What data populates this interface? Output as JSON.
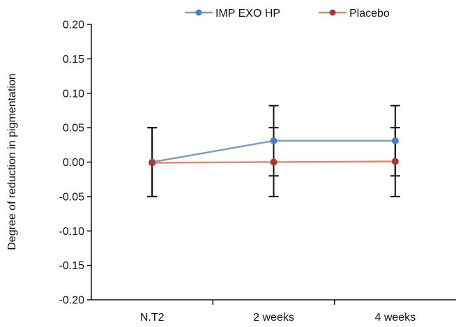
{
  "chart_data": {
    "type": "line",
    "title": "",
    "xlabel": "",
    "ylabel": "Degree of reduction in pigmentation",
    "categories": [
      "N.T2",
      "2 weeks",
      "4 weeks"
    ],
    "ylim": [
      -0.2,
      0.2
    ],
    "yticks": [
      "0.20",
      "0.15",
      "0.10",
      "0.05",
      "0.00",
      "-0.05",
      "-0.10",
      "-0.15",
      "-0.20"
    ],
    "ytick_values": [
      0.2,
      0.15,
      0.1,
      0.05,
      0.0,
      -0.05,
      -0.1,
      -0.15,
      -0.2
    ],
    "grid": false,
    "legend_position": "top",
    "series": [
      {
        "name": "IMP EXO HP",
        "color": "#7b9dc3",
        "marker_color": "#4a7fc1",
        "values": [
          0.0,
          0.031,
          0.031
        ],
        "error_upper": [
          0.05,
          0.082,
          0.082
        ],
        "error_lower": [
          -0.05,
          -0.02,
          -0.02
        ]
      },
      {
        "name": "Placebo",
        "color": "#e08c6c",
        "marker_color": "#a33a33",
        "values": [
          -0.001,
          0.0,
          0.001
        ],
        "error_upper": [
          0.05,
          0.05,
          0.05
        ],
        "error_lower": [
          -0.05,
          -0.05,
          -0.05
        ]
      }
    ],
    "error_bar_color": "#111111"
  }
}
